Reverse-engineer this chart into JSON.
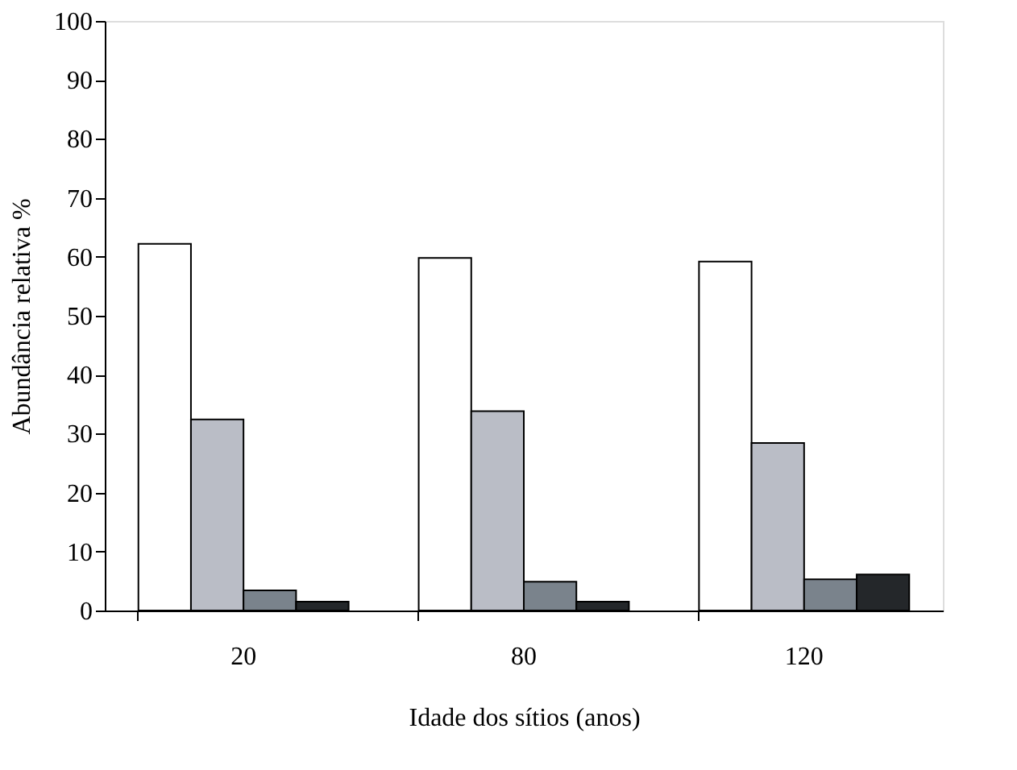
{
  "chart_data": {
    "type": "bar",
    "xlabel": "Idade dos sítios (anos)",
    "ylabel": "Abundância relativa %",
    "categories": [
      "20",
      "80",
      "120"
    ],
    "series": [
      {
        "color": "#ffffff",
        "values": [
          62.2,
          59.8,
          59.2
        ]
      },
      {
        "color": "#babdc6",
        "values": [
          32.4,
          33.8,
          28.4
        ]
      },
      {
        "color": "#7a838c",
        "values": [
          3.4,
          4.9,
          5.3
        ]
      },
      {
        "color": "#24272a",
        "values": [
          1.5,
          1.5,
          6.1
        ]
      }
    ],
    "ylim": [
      0,
      100
    ],
    "yticks": [
      0,
      10,
      20,
      30,
      40,
      50,
      60,
      70,
      80,
      90,
      100
    ],
    "grid": false,
    "legend": false
  }
}
